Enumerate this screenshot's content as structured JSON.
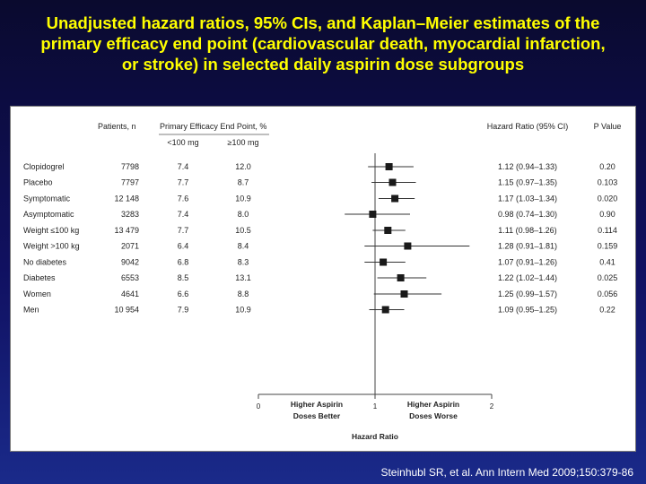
{
  "slide": {
    "title_lines": [
      "Unadjusted hazard ratios, 95% CIs, and Kaplan–Meier estimates of the",
      "primary efficacy end point (cardiovascular death, myocardial infarction,",
      "or stroke) in selected daily aspirin dose subgroups"
    ],
    "citation": "Steinhubl SR, et al. Ann Intern Med 2009;150:379-86"
  },
  "table": {
    "headers": {
      "patients": "Patients, n",
      "endpoint": "Primary Efficacy End Point, %",
      "low": "<100 mg",
      "high": "≥100 mg",
      "hr": "Hazard Ratio (95% CI)",
      "p": "P Value"
    },
    "groups": [
      [
        {
          "label": "Clopidogrel",
          "n": "7798",
          "low": "7.4",
          "high": "12.0",
          "hr_text": "1.12 (0.94–1.33)",
          "p": "0.20"
        },
        {
          "label": "Placebo",
          "n": "7797",
          "low": "7.7",
          "high": "8.7",
          "hr_text": "1.15 (0.97–1.35)",
          "p": "0.103"
        }
      ],
      [
        {
          "label": "Symptomatic",
          "n": "12 148",
          "low": "7.6",
          "high": "10.9",
          "hr_text": "1.17 (1.03–1.34)",
          "p": "0.020"
        },
        {
          "label": "Asymptomatic",
          "n": "3283",
          "low": "7.4",
          "high": "8.0",
          "hr_text": "0.98 (0.74–1.30)",
          "p": "0.90"
        }
      ],
      [
        {
          "label": "Weight ≤100 kg",
          "n": "13 479",
          "low": "7.7",
          "high": "10.5",
          "hr_text": "1.11 (0.98–1.26)",
          "p": "0.114"
        },
        {
          "label": "Weight >100 kg",
          "n": "2071",
          "low": "6.4",
          "high": "8.4",
          "hr_text": "1.28 (0.91–1.81)",
          "p": "0.159"
        }
      ],
      [
        {
          "label": "No diabetes",
          "n": "9042",
          "low": "6.8",
          "high": "8.3",
          "hr_text": "1.07 (0.91–1.26)",
          "p": "0.41"
        },
        {
          "label": "Diabetes",
          "n": "6553",
          "low": "8.5",
          "high": "13.1",
          "hr_text": "1.22 (1.02–1.44)",
          "p": "0.025"
        }
      ],
      [
        {
          "label": "Women",
          "n": "4641",
          "low": "6.6",
          "high": "8.8",
          "hr_text": "1.25 (0.99–1.57)",
          "p": "0.056"
        },
        {
          "label": "Men",
          "n": "10 954",
          "low": "7.9",
          "high": "10.9",
          "hr_text": "1.09 (0.95–1.25)",
          "p": "0.22"
        }
      ]
    ]
  },
  "chart_data": {
    "type": "forest",
    "xlabel": "Hazard Ratio",
    "xlim": [
      0,
      2
    ],
    "x_ticks": [
      "0",
      "1",
      "2"
    ],
    "reference_line": 1,
    "left_annotation": [
      "Higher Aspirin",
      "Doses Better"
    ],
    "right_annotation": [
      "Higher Aspirin",
      "Doses Worse"
    ],
    "marker_color": "#1a1a1a",
    "points": [
      {
        "label": "Clopidogrel",
        "hr": 1.12,
        "lo": 0.94,
        "hi": 1.33
      },
      {
        "label": "Placebo",
        "hr": 1.15,
        "lo": 0.97,
        "hi": 1.35
      },
      {
        "label": "Symptomatic",
        "hr": 1.17,
        "lo": 1.03,
        "hi": 1.34
      },
      {
        "label": "Asymptomatic",
        "hr": 0.98,
        "lo": 0.74,
        "hi": 1.3
      },
      {
        "label": "Weight ≤100 kg",
        "hr": 1.11,
        "lo": 0.98,
        "hi": 1.26
      },
      {
        "label": "Weight >100 kg",
        "hr": 1.28,
        "lo": 0.91,
        "hi": 1.81
      },
      {
        "label": "No diabetes",
        "hr": 1.07,
        "lo": 0.91,
        "hi": 1.26
      },
      {
        "label": "Diabetes",
        "hr": 1.22,
        "lo": 1.02,
        "hi": 1.44
      },
      {
        "label": "Women",
        "hr": 1.25,
        "lo": 0.99,
        "hi": 1.57
      },
      {
        "label": "Men",
        "hr": 1.09,
        "lo": 0.95,
        "hi": 1.25
      }
    ]
  }
}
